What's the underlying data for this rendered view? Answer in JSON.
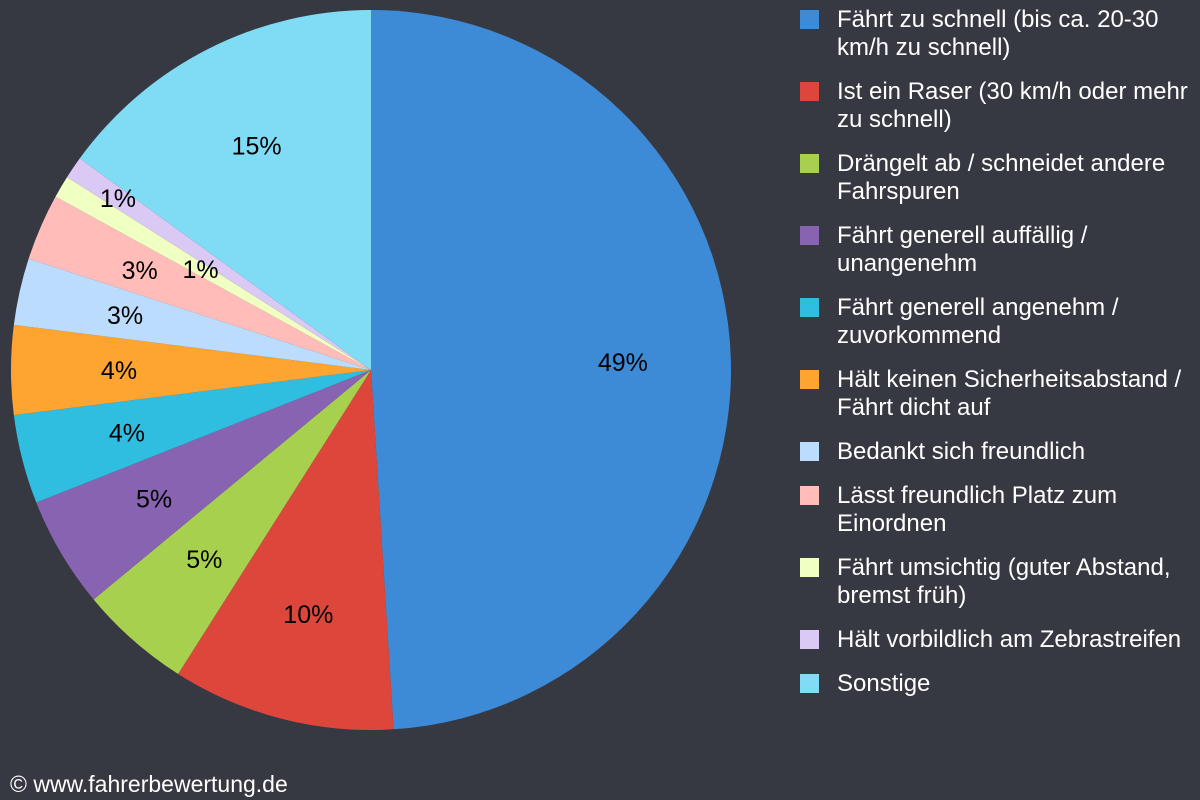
{
  "chart_data": {
    "type": "pie",
    "start": "top",
    "direction": "clockwise",
    "legend_position": "right",
    "slices": [
      {
        "label": "Fährt zu schnell (bis ca. 20-30 km/h zu schnell)",
        "value": 49,
        "display": "49%",
        "color": "#3d8bd6"
      },
      {
        "label": "Ist ein Raser (30 km/h oder mehr zu schnell)",
        "value": 10,
        "display": "10%",
        "color": "#dd463a"
      },
      {
        "label": "Drängelt ab / schneidet andere Fahrspuren",
        "value": 5,
        "display": "5%",
        "color": "#a8d04f"
      },
      {
        "label": "Fährt generell auffällig / unangenehm",
        "value": 5,
        "display": "5%",
        "color": "#8863b1"
      },
      {
        "label": "Fährt generell angenehm / zuvorkommend",
        "value": 4,
        "display": "4%",
        "color": "#2fbde0"
      },
      {
        "label": "Hält keinen Sicherheitsabstand / Fährt dicht auf",
        "value": 4,
        "display": "4%",
        "color": "#fda431"
      },
      {
        "label": "Bedankt sich freundlich",
        "value": 3,
        "display": "3%",
        "color": "#bbdcfd"
      },
      {
        "label": "Lässt freundlich Platz zum Einordnen",
        "value": 3,
        "display": "3%",
        "color": "#ffbcb9"
      },
      {
        "label": "Fährt umsichtig (guter Abstand, bremst früh)",
        "value": 1,
        "display": "1%",
        "color": "#f0ffc2"
      },
      {
        "label": "Hält vorbildlich am Zebrastreifen",
        "value": 1,
        "display": "1%",
        "color": "#dac9f4"
      },
      {
        "label": "Sonstige",
        "value": 15,
        "display": "15%",
        "color": "#80dcf4"
      }
    ]
  },
  "footer": {
    "copyright": "© www.fahrerbewertung.de"
  },
  "colors": {
    "background": "#363842",
    "legend_text": "#ffffff",
    "label_text": "#000000"
  }
}
